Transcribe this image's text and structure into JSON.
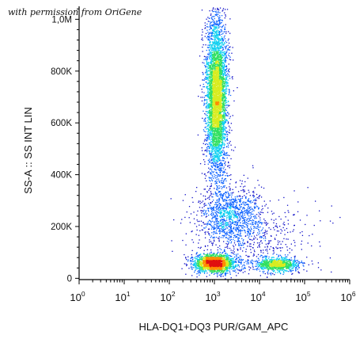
{
  "credit": "with permission from OriGene",
  "chart_data": {
    "type": "scatter",
    "title": "",
    "xlabel": "HLA-DQ1+DQ3 PUR/GAM_APC",
    "ylabel": "SS-A :: SS INT LIN",
    "x_scale": "log",
    "xlim": [
      1,
      1000000
    ],
    "ylim": [
      -5000,
      1050000
    ],
    "x_ticks": [
      {
        "value": 1,
        "base": "10",
        "exp": "0"
      },
      {
        "value": 10,
        "base": "10",
        "exp": "1"
      },
      {
        "value": 100,
        "base": "10",
        "exp": "2"
      },
      {
        "value": 1000,
        "base": "10",
        "exp": "3"
      },
      {
        "value": 10000,
        "base": "10",
        "exp": "4"
      },
      {
        "value": 100000,
        "base": "10",
        "exp": "5"
      },
      {
        "value": 1000000,
        "base": "10",
        "exp": "6"
      }
    ],
    "y_ticks": [
      {
        "value": 0,
        "label": "0"
      },
      {
        "value": 200000,
        "label": "200K"
      },
      {
        "value": 400000,
        "label": "400K"
      },
      {
        "value": 600000,
        "label": "600K"
      },
      {
        "value": 800000,
        "label": "800K"
      },
      {
        "value": 1000000,
        "label": "1,0M"
      }
    ],
    "density_colors": [
      "#1010c8",
      "#0a60ff",
      "#10d0f0",
      "#30e060",
      "#d8ec20",
      "#ff8c00",
      "#e01010"
    ],
    "populations": [
      {
        "name": "",
        "x_center": 1100,
        "y_center": 700000,
        "x_spread_decades": 0.12,
        "y_spread": 150000,
        "weight": 0.5
      },
      {
        "name": "",
        "x_center": 1000,
        "y_center": 60000,
        "x_spread_decades": 0.22,
        "y_spread": 18000,
        "weight": 0.22
      },
      {
        "name": "",
        "x_center": 25000,
        "y_center": 55000,
        "x_spread_decades": 0.25,
        "y_spread": 13000,
        "weight": 0.1
      },
      {
        "name": "",
        "x_center": 2200,
        "y_center": 250000,
        "x_spread_decades": 0.35,
        "y_spread": 55000,
        "weight": 0.12
      },
      {
        "name": "",
        "x_center": 8000,
        "y_center": 150000,
        "x_spread_decades": 0.7,
        "y_spread": 80000,
        "weight": 0.06
      }
    ]
  }
}
